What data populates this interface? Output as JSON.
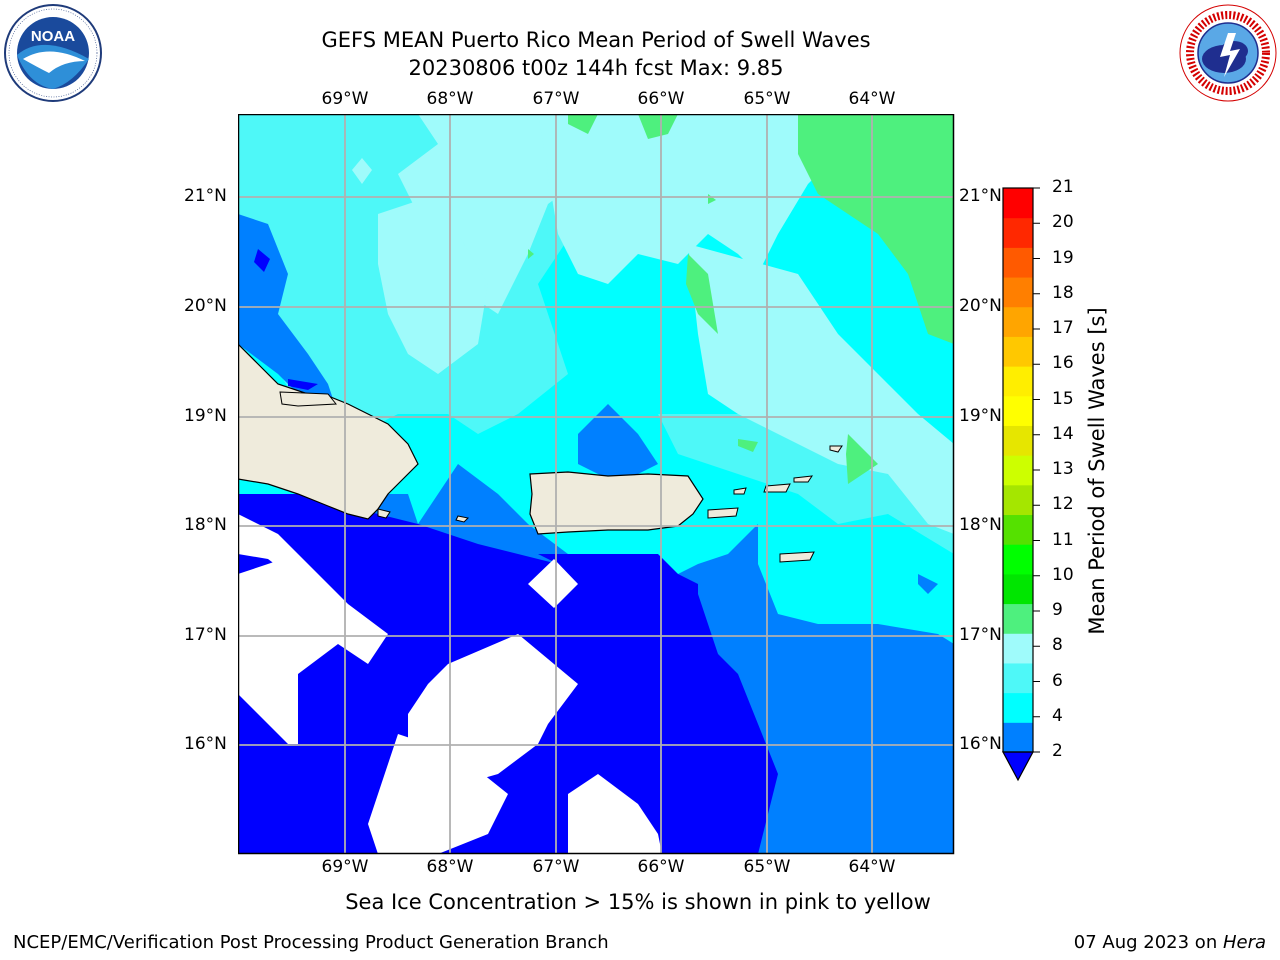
{
  "header": {
    "title_line1": "GEFS MEAN Puerto Rico Mean Period of Swell Waves",
    "title_line2": "20230806 t00z 144h fcst   Max: 9.85"
  },
  "logos": {
    "left": {
      "name": "noaa-logo",
      "text": "NOAA",
      "ring_text": "NATIONAL OCEANIC AND ATMOSPHERIC ADMINISTRATION · U.S. DEPARTMENT OF COMMERCE"
    },
    "right": {
      "name": "nws-logo",
      "ring_text": "NATIONAL WEATHER SERVICE"
    }
  },
  "map": {
    "lon_labels": [
      "69°W",
      "68°W",
      "67°W",
      "66°W",
      "65°W",
      "64°W"
    ],
    "lat_labels": [
      "21°N",
      "20°N",
      "19°N",
      "18°N",
      "17°N",
      "16°N"
    ],
    "land_color": "#efebdc",
    "islands": [
      "Hispaniola",
      "Puerto Rico",
      "Virgin Islands"
    ]
  },
  "colorbar": {
    "label": "Mean Period of Swell Waves [s]",
    "ticks": [
      "21",
      "20",
      "19",
      "18",
      "17",
      "16",
      "15",
      "14",
      "13",
      "12",
      "11",
      "10",
      "9",
      "8",
      "6",
      "4",
      "2"
    ],
    "colors_bottom_to_top": [
      "#0080ff",
      "#00ffff",
      "#4ef8f8",
      "#9ffbfb",
      "#4ef07e",
      "#00e600",
      "#00ff00",
      "#55e100",
      "#a5e600",
      "#cdff00",
      "#e6e600",
      "#ffff00",
      "#ffee00",
      "#ffc800",
      "#ffa500",
      "#ff7f00",
      "#ff5a00",
      "#ff2800",
      "#ff0000"
    ],
    "extend_color": "#0000ff"
  },
  "caption": "Sea Ice Concentration > 15% is shown in pink to yellow",
  "footer": {
    "left": "NCEP/EMC/Verification Post Processing Product Generation Branch",
    "date": "07 Aug 2023 on ",
    "host": "Hera"
  }
}
